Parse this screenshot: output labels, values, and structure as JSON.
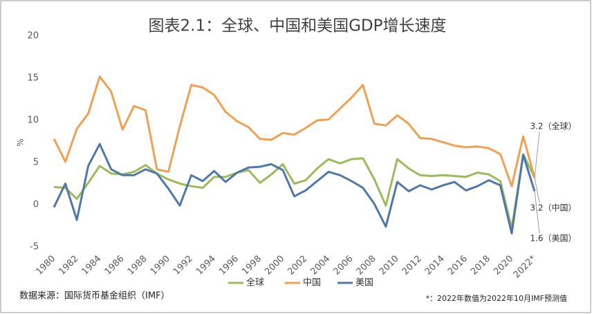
{
  "chart_data": {
    "type": "line",
    "title": "图表2.1：全球、中国和美国GDP增长速度",
    "y_label": "%",
    "categories": [
      "1980",
      null,
      "1982",
      null,
      "1984",
      null,
      "1986",
      null,
      "1988",
      null,
      "1990",
      null,
      "1992",
      null,
      "1994",
      null,
      "1996",
      null,
      "1998",
      null,
      "2000",
      null,
      "2002",
      null,
      "2004",
      null,
      "2006",
      null,
      "2008",
      null,
      "2010",
      null,
      "2012",
      null,
      "2014",
      null,
      "2016",
      null,
      "2018",
      null,
      "2020",
      null,
      "2022*"
    ],
    "series": [
      {
        "name": "全球",
        "color": "#9bbb59",
        "values": [
          2.1,
          2.0,
          0.7,
          2.6,
          4.6,
          3.7,
          3.6,
          3.9,
          4.7,
          3.7,
          3.0,
          2.5,
          2.2,
          2.0,
          3.3,
          3.3,
          3.8,
          4.1,
          2.6,
          3.6,
          4.8,
          2.5,
          2.9,
          4.3,
          5.4,
          4.9,
          5.4,
          5.5,
          3.0,
          -0.1,
          5.4,
          4.3,
          3.5,
          3.4,
          3.5,
          3.4,
          3.3,
          3.8,
          3.6,
          2.8,
          -2.8,
          6.0,
          3.2
        ]
      },
      {
        "name": "中国",
        "color": "#f0a050",
        "values": [
          7.8,
          5.1,
          9.0,
          10.8,
          15.2,
          13.4,
          8.9,
          11.7,
          11.2,
          4.2,
          3.9,
          9.3,
          14.2,
          13.9,
          13.0,
          11.0,
          9.9,
          9.2,
          7.8,
          7.7,
          8.5,
          8.3,
          9.1,
          10.0,
          10.1,
          11.4,
          12.7,
          14.2,
          9.6,
          9.4,
          10.6,
          9.6,
          7.9,
          7.8,
          7.4,
          7.0,
          6.8,
          6.9,
          6.7,
          6.0,
          2.2,
          8.1,
          3.2
        ]
      },
      {
        "name": "美国",
        "color": "#4f77aa",
        "values": [
          -0.3,
          2.5,
          -1.8,
          4.6,
          7.2,
          4.2,
          3.5,
          3.5,
          4.2,
          3.7,
          1.9,
          -0.1,
          3.5,
          2.8,
          4.0,
          2.7,
          3.8,
          4.4,
          4.5,
          4.8,
          4.1,
          1.0,
          1.7,
          2.8,
          3.9,
          3.5,
          2.8,
          2.0,
          0.1,
          -2.6,
          2.7,
          1.6,
          2.3,
          1.8,
          2.3,
          2.7,
          1.7,
          2.2,
          2.9,
          2.3,
          -3.4,
          5.9,
          1.6
        ]
      }
    ],
    "annotations": [
      "3.2（全球）",
      "3.2（中国）",
      "1.6（美国）"
    ],
    "ylim": [
      -5,
      20
    ],
    "yticks": [
      -5,
      0,
      5,
      10,
      15,
      20
    ],
    "grid": false,
    "source": "数据来源：国际货币基金组织（IMF）",
    "note": "*：2022年数值为2022年10月IMF预测值"
  }
}
